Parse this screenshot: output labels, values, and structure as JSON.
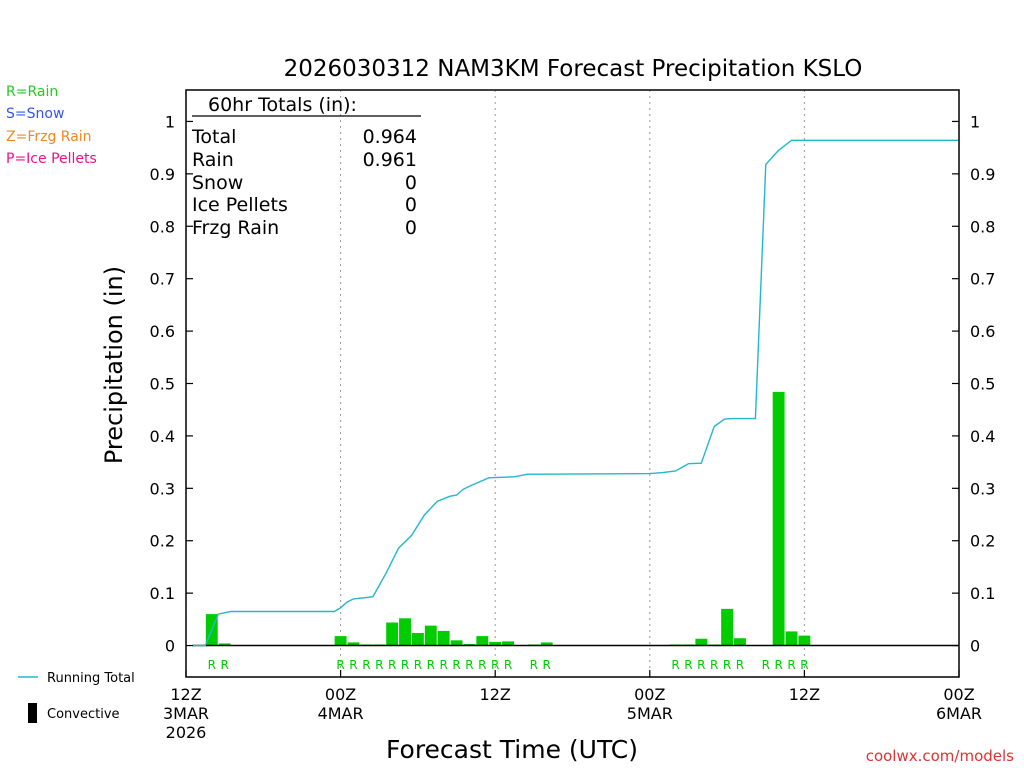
{
  "chart_data": {
    "type": "bar",
    "title": "2026030312 NAM3KM Forecast Precipitation KSLO",
    "xlabel": "Forecast Time (UTC)",
    "ylabel": "Precipitation (in)",
    "xlim": [
      0,
      60
    ],
    "ylim": [
      -0.06,
      1.06
    ],
    "y_ticks": [
      0,
      0.1,
      0.2,
      0.3,
      0.4,
      0.5,
      0.6,
      0.7,
      0.8,
      0.9,
      1
    ],
    "y_tick_labels": [
      "0",
      "0.1",
      "0.2",
      "0.3",
      "0.4",
      "0.5",
      "0.6",
      "0.7",
      "0.8",
      "0.9",
      "1"
    ],
    "x_ticks": [
      {
        "hour": 0,
        "lines": [
          "12Z",
          "3MAR",
          "2026"
        ]
      },
      {
        "hour": 12,
        "lines": [
          "00Z",
          "4MAR"
        ]
      },
      {
        "hour": 24,
        "lines": [
          "12Z"
        ]
      },
      {
        "hour": 36,
        "lines": [
          "00Z",
          "5MAR"
        ]
      },
      {
        "hour": 48,
        "lines": [
          "12Z"
        ]
      },
      {
        "hour": 60,
        "lines": [
          "00Z",
          "6MAR"
        ]
      }
    ],
    "vertical_gridlines_hours": [
      12,
      24,
      36,
      48
    ],
    "grid": "dotted vertical at 00Z/12Z",
    "bar_series": {
      "name": "Hourly Precipitation",
      "color": "#00cc00",
      "bar_width_hours": 1,
      "bars": [
        {
          "hour": 2,
          "value": 0.06
        },
        {
          "hour": 3,
          "value": 0.004
        },
        {
          "hour": 12,
          "value": 0.018
        },
        {
          "hour": 13,
          "value": 0.006
        },
        {
          "hour": 14,
          "value": 0.002
        },
        {
          "hour": 15,
          "value": 0.002
        },
        {
          "hour": 16,
          "value": 0.044
        },
        {
          "hour": 17,
          "value": 0.052
        },
        {
          "hour": 18,
          "value": 0.024
        },
        {
          "hour": 19,
          "value": 0.038
        },
        {
          "hour": 20,
          "value": 0.028
        },
        {
          "hour": 21,
          "value": 0.01
        },
        {
          "hour": 22,
          "value": 0.003
        },
        {
          "hour": 23,
          "value": 0.018
        },
        {
          "hour": 24,
          "value": 0.007
        },
        {
          "hour": 25,
          "value": 0.008
        },
        {
          "hour": 27,
          "value": 0.002
        },
        {
          "hour": 28,
          "value": 0.006
        },
        {
          "hour": 38,
          "value": 0.002
        },
        {
          "hour": 39,
          "value": 0.002
        },
        {
          "hour": 40,
          "value": 0.013
        },
        {
          "hour": 41,
          "value": 0.002
        },
        {
          "hour": 42,
          "value": 0.07
        },
        {
          "hour": 43,
          "value": 0.014
        },
        {
          "hour": 45,
          "value": 0.001
        },
        {
          "hour": 46,
          "value": 0.484
        },
        {
          "hour": 47,
          "value": 0.027
        },
        {
          "hour": 48,
          "value": 0.019
        }
      ]
    },
    "line_series": {
      "name": "Running Total",
      "color": "#22b8cc",
      "points": [
        [
          0.5,
          0
        ],
        [
          1.5,
          0
        ],
        [
          2,
          0.03
        ],
        [
          2.5,
          0.06
        ],
        [
          3.5,
          0.065
        ],
        [
          4.5,
          0.065
        ],
        [
          11,
          0.065
        ],
        [
          11.5,
          0.065
        ],
        [
          12,
          0.072
        ],
        [
          12.5,
          0.083
        ],
        [
          13,
          0.089
        ],
        [
          14.5,
          0.093
        ],
        [
          15.5,
          0.137
        ],
        [
          16.5,
          0.186
        ],
        [
          17.5,
          0.21
        ],
        [
          18.5,
          0.249
        ],
        [
          19.5,
          0.275
        ],
        [
          20.5,
          0.285
        ],
        [
          21,
          0.287
        ],
        [
          21.5,
          0.298
        ],
        [
          22,
          0.304
        ],
        [
          23.5,
          0.32
        ],
        [
          24.5,
          0.321
        ],
        [
          25.5,
          0.322
        ],
        [
          26.5,
          0.327
        ],
        [
          27.5,
          0.327
        ],
        [
          36,
          0.328
        ],
        [
          37,
          0.33
        ],
        [
          38,
          0.333
        ],
        [
          39,
          0.347
        ],
        [
          40,
          0.348
        ],
        [
          41,
          0.418
        ],
        [
          41.8,
          0.432
        ],
        [
          42.5,
          0.433
        ],
        [
          43.5,
          0.433
        ],
        [
          44.2,
          0.433
        ],
        [
          45,
          0.918
        ],
        [
          46,
          0.945
        ],
        [
          47,
          0.964
        ],
        [
          60,
          0.964
        ]
      ]
    },
    "ptype_labels": {
      "color": "#00cc00",
      "entries": [
        {
          "hour": 2,
          "label": "R"
        },
        {
          "hour": 3,
          "label": "R"
        },
        {
          "hour": 12,
          "label": "R"
        },
        {
          "hour": 13,
          "label": "R"
        },
        {
          "hour": 14,
          "label": "R"
        },
        {
          "hour": 15,
          "label": "R"
        },
        {
          "hour": 16,
          "label": "R"
        },
        {
          "hour": 17,
          "label": "R"
        },
        {
          "hour": 18,
          "label": "R"
        },
        {
          "hour": 19,
          "label": "R"
        },
        {
          "hour": 20,
          "label": "R"
        },
        {
          "hour": 21,
          "label": "R"
        },
        {
          "hour": 22,
          "label": "R"
        },
        {
          "hour": 23,
          "label": "R"
        },
        {
          "hour": 24,
          "label": "R"
        },
        {
          "hour": 25,
          "label": "R"
        },
        {
          "hour": 27,
          "label": "R"
        },
        {
          "hour": 28,
          "label": "R"
        },
        {
          "hour": 38,
          "label": "R"
        },
        {
          "hour": 39,
          "label": "R"
        },
        {
          "hour": 40,
          "label": "R"
        },
        {
          "hour": 41,
          "label": "R"
        },
        {
          "hour": 42,
          "label": "R"
        },
        {
          "hour": 43,
          "label": "R"
        },
        {
          "hour": 45,
          "label": "R"
        },
        {
          "hour": 46,
          "label": "R"
        },
        {
          "hour": 47,
          "label": "R"
        },
        {
          "hour": 48,
          "label": "R"
        }
      ]
    },
    "totals_box": {
      "header": "60hr Totals (in):",
      "rows": [
        {
          "label": "Total",
          "value": "0.964"
        },
        {
          "label": "Rain",
          "value": "0.961"
        },
        {
          "label": "Snow",
          "value": "0"
        },
        {
          "label": "Ice Pellets",
          "value": "0"
        },
        {
          "label": "Frzg Rain",
          "value": "0"
        }
      ]
    },
    "ptype_key": [
      {
        "text": "R=Rain",
        "color": "#22cc22"
      },
      {
        "text": "S=Snow",
        "color": "#3355ee"
      },
      {
        "text": "Z=Frzg Rain",
        "color": "#ee8822"
      },
      {
        "text": "P=Ice Pellets",
        "color": "#ee1188"
      }
    ],
    "legend": [
      {
        "label": "Running Total",
        "color": "#22b8cc",
        "kind": "line"
      },
      {
        "label": "Convective",
        "color": "#000000",
        "kind": "bar"
      }
    ],
    "credit": "coolwx.com/models",
    "credit_color": "#dd3333"
  }
}
